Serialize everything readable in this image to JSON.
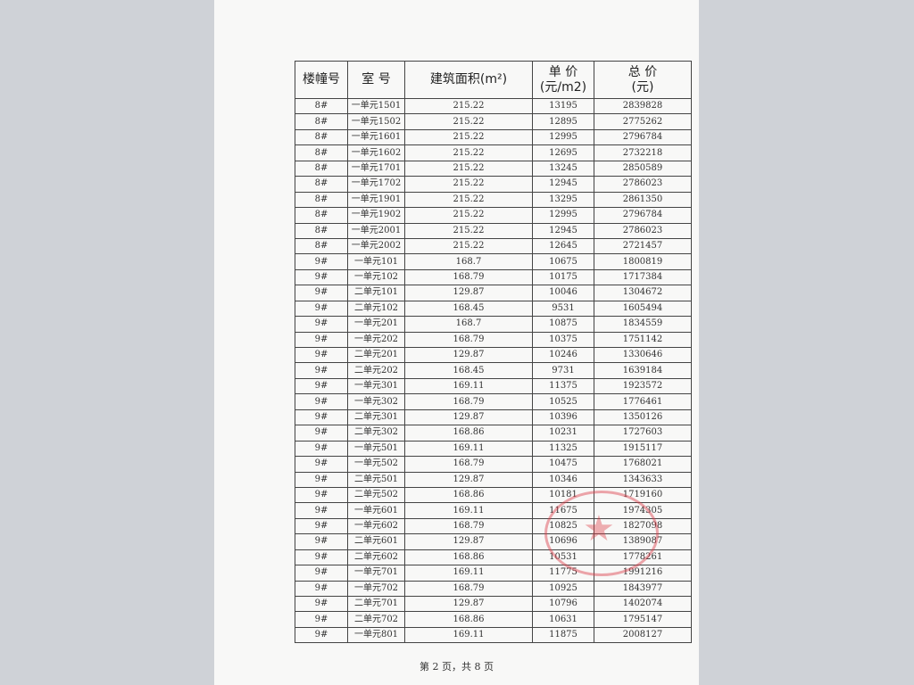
{
  "table": {
    "headers": [
      {
        "line1": "楼幢号",
        "line2": ""
      },
      {
        "line1": "室 号",
        "line2": ""
      },
      {
        "line1": "建筑面积(m²)",
        "line2": ""
      },
      {
        "line1": "单 价",
        "line2": "(元/m2)"
      },
      {
        "line1": "总 价",
        "line2": "(元)"
      }
    ],
    "rows": [
      [
        "8#",
        "一单元1501",
        "215.22",
        "13195",
        "2839828"
      ],
      [
        "8#",
        "一单元1502",
        "215.22",
        "12895",
        "2775262"
      ],
      [
        "8#",
        "一单元1601",
        "215.22",
        "12995",
        "2796784"
      ],
      [
        "8#",
        "一单元1602",
        "215.22",
        "12695",
        "2732218"
      ],
      [
        "8#",
        "一单元1701",
        "215.22",
        "13245",
        "2850589"
      ],
      [
        "8#",
        "一单元1702",
        "215.22",
        "12945",
        "2786023"
      ],
      [
        "8#",
        "一单元1901",
        "215.22",
        "13295",
        "2861350"
      ],
      [
        "8#",
        "一单元1902",
        "215.22",
        "12995",
        "2796784"
      ],
      [
        "8#",
        "一单元2001",
        "215.22",
        "12945",
        "2786023"
      ],
      [
        "8#",
        "一单元2002",
        "215.22",
        "12645",
        "2721457"
      ],
      [
        "9#",
        "一单元101",
        "168.7",
        "10675",
        "1800819"
      ],
      [
        "9#",
        "一单元102",
        "168.79",
        "10175",
        "1717384"
      ],
      [
        "9#",
        "二单元101",
        "129.87",
        "10046",
        "1304672"
      ],
      [
        "9#",
        "二单元102",
        "168.45",
        "9531",
        "1605494"
      ],
      [
        "9#",
        "一单元201",
        "168.7",
        "10875",
        "1834559"
      ],
      [
        "9#",
        "一单元202",
        "168.79",
        "10375",
        "1751142"
      ],
      [
        "9#",
        "二单元201",
        "129.87",
        "10246",
        "1330646"
      ],
      [
        "9#",
        "二单元202",
        "168.45",
        "9731",
        "1639184"
      ],
      [
        "9#",
        "一单元301",
        "169.11",
        "11375",
        "1923572"
      ],
      [
        "9#",
        "一单元302",
        "168.79",
        "10525",
        "1776461"
      ],
      [
        "9#",
        "二单元301",
        "129.87",
        "10396",
        "1350126"
      ],
      [
        "9#",
        "二单元302",
        "168.86",
        "10231",
        "1727603"
      ],
      [
        "9#",
        "一单元501",
        "169.11",
        "11325",
        "1915117"
      ],
      [
        "9#",
        "一单元502",
        "168.79",
        "10475",
        "1768021"
      ],
      [
        "9#",
        "二单元501",
        "129.87",
        "10346",
        "1343633"
      ],
      [
        "9#",
        "二单元502",
        "168.86",
        "10181",
        "1719160"
      ],
      [
        "9#",
        "一单元601",
        "169.11",
        "11675",
        "1974305"
      ],
      [
        "9#",
        "一单元602",
        "168.79",
        "10825",
        "1827098"
      ],
      [
        "9#",
        "二单元601",
        "129.87",
        "10696",
        "1389087"
      ],
      [
        "9#",
        "二单元602",
        "168.86",
        "10531",
        "1778261"
      ],
      [
        "9#",
        "一单元701",
        "169.11",
        "11775",
        "1991216"
      ],
      [
        "9#",
        "一单元702",
        "168.79",
        "10925",
        "1843977"
      ],
      [
        "9#",
        "二单元701",
        "129.87",
        "10796",
        "1402074"
      ],
      [
        "9#",
        "二单元702",
        "168.86",
        "10631",
        "1795147"
      ],
      [
        "9#",
        "一单元801",
        "169.11",
        "11875",
        "2008127"
      ]
    ]
  },
  "footer": {
    "page_label": "第 2 页，共 8 页"
  },
  "stamp": {
    "color": "#dc3c46",
    "icon": "star-icon"
  }
}
